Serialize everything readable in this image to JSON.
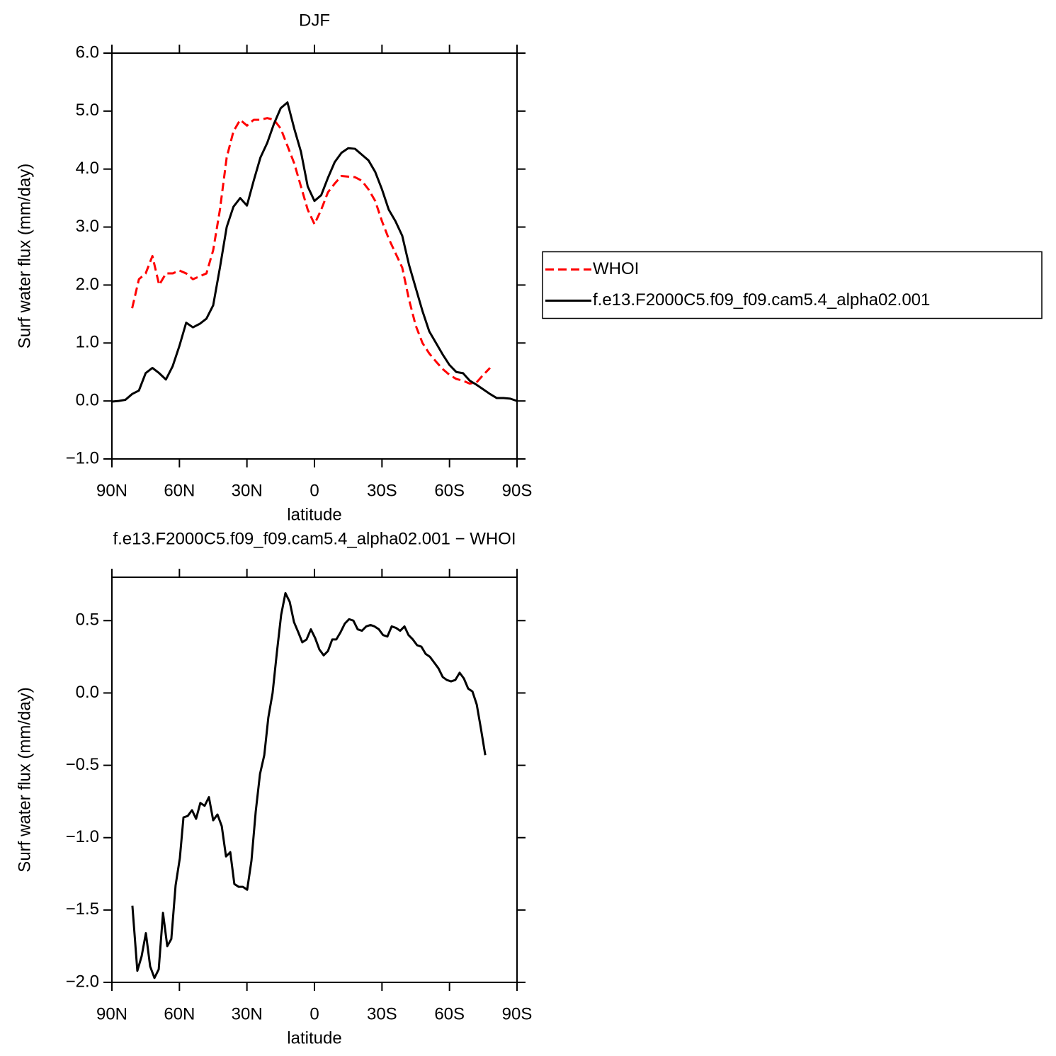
{
  "chart_data": [
    {
      "type": "line",
      "title": "DJF",
      "xlabel": "latitude",
      "ylabel": "Surf water flux (mm/day)",
      "x": [
        90,
        87,
        84,
        81,
        78,
        75,
        72,
        69,
        66,
        63,
        60,
        57,
        54,
        51,
        48,
        45,
        42,
        39,
        36,
        33,
        30,
        27,
        24,
        21,
        18,
        15,
        12,
        9,
        6,
        3,
        0,
        -3,
        -6,
        -9,
        -12,
        -15,
        -18,
        -21,
        -24,
        -27,
        -30,
        -33,
        -36,
        -39,
        -42,
        -45,
        -48,
        -51,
        -54,
        -57,
        -60,
        -63,
        -66,
        -69,
        -72,
        -75,
        -78,
        -81,
        -84,
        -87,
        -90
      ],
      "series": [
        {
          "name": "WHOI",
          "color": "#ff0000",
          "dash": true,
          "values": [
            null,
            null,
            null,
            1.6,
            2.1,
            2.2,
            2.5,
            2.0,
            2.2,
            2.2,
            2.25,
            2.2,
            2.1,
            2.15,
            2.2,
            2.6,
            3.3,
            4.2,
            4.65,
            4.85,
            4.75,
            4.85,
            4.85,
            4.88,
            4.85,
            4.7,
            4.4,
            4.1,
            3.7,
            3.3,
            3.05,
            3.3,
            3.6,
            3.75,
            3.88,
            3.87,
            3.86,
            3.8,
            3.65,
            3.45,
            3.1,
            2.8,
            2.55,
            2.3,
            1.75,
            1.3,
            1.0,
            0.82,
            0.68,
            0.55,
            0.45,
            0.38,
            0.35,
            0.3,
            0.32,
            0.45,
            0.57,
            null,
            null,
            null,
            null
          ]
        },
        {
          "name": "f.e13.F2000C5.f09_f09.cam5.4_alpha02.001",
          "color": "#000000",
          "dash": false,
          "values": [
            -0.01,
            0.0,
            0.02,
            0.12,
            0.18,
            0.48,
            0.57,
            0.48,
            0.37,
            0.6,
            0.95,
            1.35,
            1.27,
            1.33,
            1.42,
            1.65,
            2.3,
            3.0,
            3.35,
            3.5,
            3.37,
            3.8,
            4.2,
            4.45,
            4.78,
            5.05,
            5.15,
            4.7,
            4.3,
            3.7,
            3.45,
            3.55,
            3.85,
            4.12,
            4.28,
            4.36,
            4.35,
            4.25,
            4.15,
            3.95,
            3.65,
            3.3,
            3.1,
            2.85,
            2.35,
            1.95,
            1.55,
            1.2,
            1.0,
            0.8,
            0.62,
            0.5,
            0.48,
            0.35,
            0.28,
            0.2,
            0.12,
            0.05,
            0.05,
            0.04,
            0.0
          ]
        }
      ],
      "xlim": [
        90,
        -90
      ],
      "xticks": [
        {
          "value": 90,
          "label": "90N"
        },
        {
          "value": 60,
          "label": "60N"
        },
        {
          "value": 30,
          "label": "30N"
        },
        0,
        {
          "value": -30,
          "label": "30S"
        },
        {
          "value": -60,
          "label": "60S"
        },
        {
          "value": -90,
          "label": "90S"
        }
      ],
      "ylim": [
        -1.0,
        6.0
      ],
      "yticks": [
        {
          "value": -1,
          "label": "−1.0"
        },
        {
          "value": 0,
          "label": "0.0"
        },
        {
          "value": 1,
          "label": "1.0"
        },
        {
          "value": 2,
          "label": "2.0"
        },
        {
          "value": 3,
          "label": "3.0"
        },
        {
          "value": 4,
          "label": "4.0"
        },
        {
          "value": 5,
          "label": "5.0"
        },
        {
          "value": 6,
          "label": "6.0"
        }
      ],
      "legend": "right"
    },
    {
      "type": "line",
      "title": "f.e13.F2000C5.f09_f09.cam5.4_alpha02.001 − WHOI",
      "xlabel": "latitude",
      "ylabel": "Surf water flux (mm/day)",
      "x": [
        80.9,
        78.7,
        76.8,
        74.9,
        73.0,
        71.1,
        69.2,
        67.3,
        65.4,
        63.6,
        61.7,
        59.8,
        58.2,
        56.3,
        54.4,
        52.6,
        50.7,
        48.8,
        46.9,
        45.0,
        43.1,
        41.2,
        39.3,
        37.4,
        35.6,
        33.7,
        31.8,
        29.9,
        28.0,
        26.1,
        24.2,
        22.3,
        20.5,
        18.6,
        16.7,
        14.8,
        12.9,
        11.0,
        9.1,
        7.2,
        5.4,
        3.5,
        1.6,
        -0.3,
        -2.2,
        -4.1,
        -6.0,
        -7.9,
        -9.7,
        -11.6,
        -13.5,
        -15.4,
        -17.3,
        -19.2,
        -21.1,
        -23.0,
        -24.9,
        -26.7,
        -28.6,
        -30.5,
        -32.4,
        -34.3,
        -36.2,
        -38.1,
        -40.0,
        -41.8,
        -43.7,
        -45.6,
        -47.5,
        -49.4,
        -51.3,
        -53.2,
        -55.1,
        -57.0,
        -58.8,
        -60.7,
        -62.6,
        -64.5,
        -66.4,
        -68.3,
        -70.2,
        -72.1,
        -74.0,
        -75.9
      ],
      "series": [
        {
          "color": "#000000",
          "dash": false,
          "values": [
            -1.47,
            -1.92,
            -1.82,
            -1.66,
            -1.89,
            -1.97,
            -1.91,
            -1.52,
            -1.75,
            -1.7,
            -1.33,
            -1.14,
            -0.86,
            -0.85,
            -0.81,
            -0.87,
            -0.76,
            -0.78,
            -0.72,
            -0.88,
            -0.84,
            -0.92,
            -1.13,
            -1.1,
            -1.32,
            -1.34,
            -1.34,
            -1.36,
            -1.16,
            -0.82,
            -0.56,
            -0.43,
            -0.17,
            0.0,
            0.28,
            0.54,
            0.69,
            0.63,
            0.49,
            0.42,
            0.35,
            0.37,
            0.44,
            0.38,
            0.3,
            0.26,
            0.29,
            0.37,
            0.37,
            0.42,
            0.48,
            0.51,
            0.5,
            0.44,
            0.43,
            0.46,
            0.47,
            0.46,
            0.44,
            0.4,
            0.39,
            0.46,
            0.45,
            0.43,
            0.46,
            0.4,
            0.37,
            0.33,
            0.32,
            0.27,
            0.25,
            0.21,
            0.17,
            0.11,
            0.09,
            0.08,
            0.09,
            0.14,
            0.1,
            0.03,
            0.01,
            -0.08,
            -0.25,
            -0.43
          ]
        }
      ],
      "xlim": [
        90,
        -90
      ],
      "xticks": [
        {
          "value": 90,
          "label": "90N"
        },
        {
          "value": 60,
          "label": "60N"
        },
        {
          "value": 30,
          "label": "30N"
        },
        0,
        {
          "value": -30,
          "label": "30S"
        },
        {
          "value": -60,
          "label": "60S"
        },
        {
          "value": -90,
          "label": "90S"
        }
      ],
      "ylim": [
        -2.0,
        0.8
      ],
      "yticks": [
        {
          "value": -2,
          "label": "−2.0"
        },
        {
          "value": -1.5,
          "label": "−1.5"
        },
        {
          "value": -1,
          "label": "−1.0"
        },
        {
          "value": -0.5,
          "label": "−0.5"
        },
        {
          "value": 0,
          "label": "0.0"
        },
        0.5
      ]
    }
  ]
}
